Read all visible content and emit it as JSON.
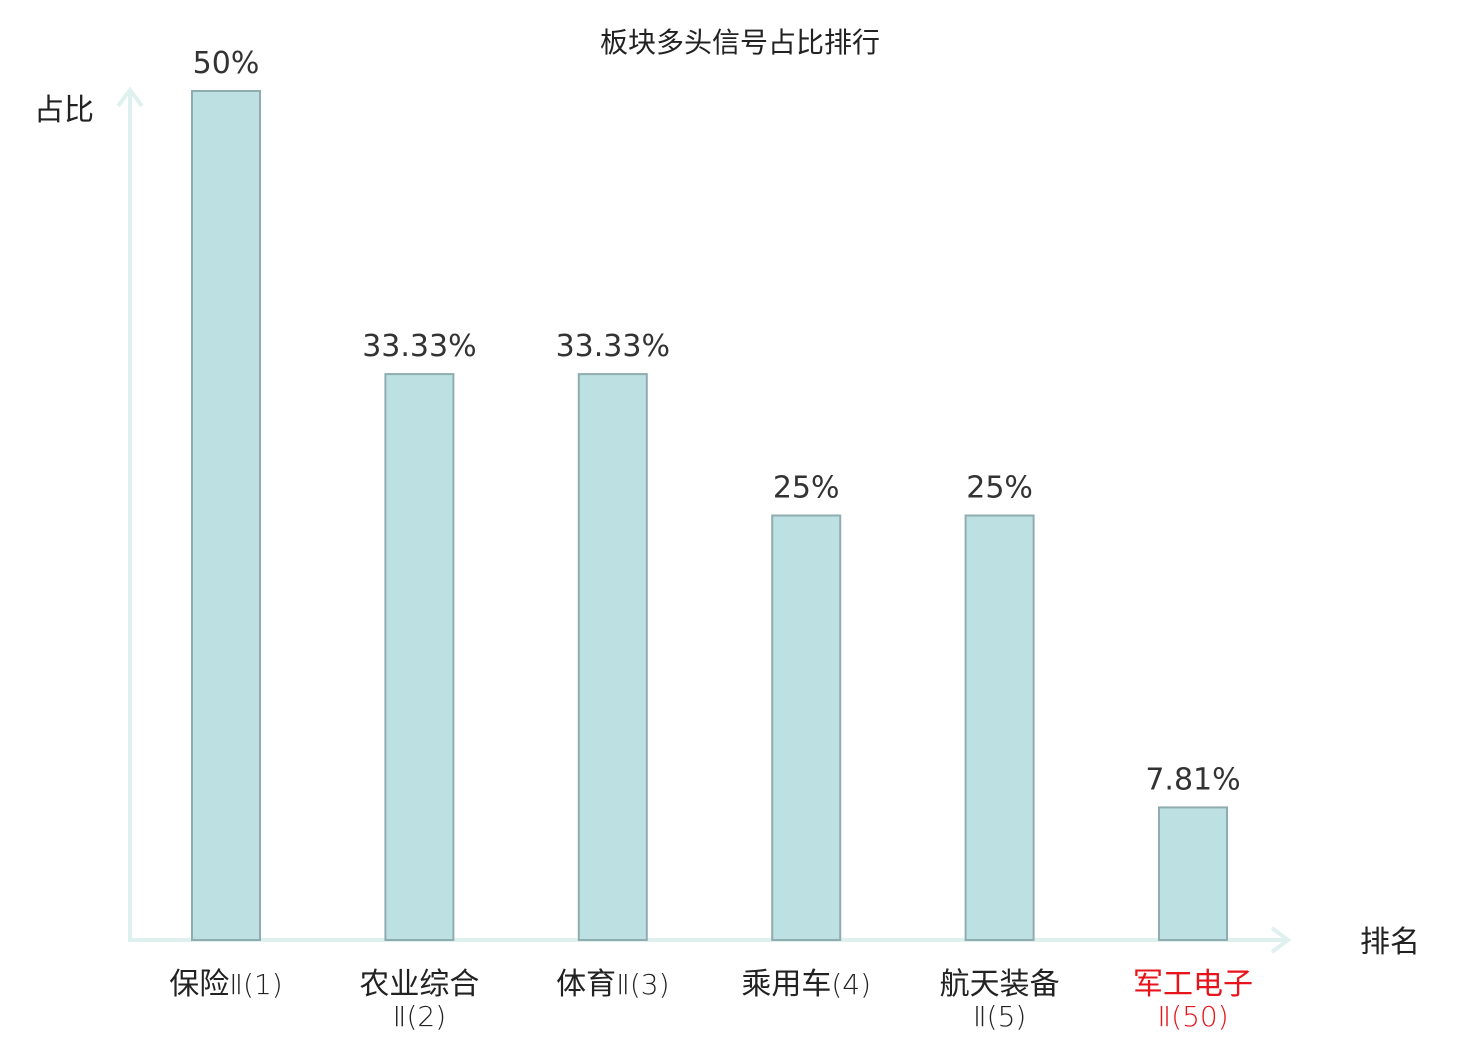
{
  "chart_data": {
    "type": "bar",
    "title": "板块多头信号占比排行",
    "xlabel": "排名",
    "ylabel": "占比",
    "ylim": [
      0,
      50
    ],
    "grid": false,
    "categories": [
      {
        "name": "保险",
        "suffix": "Ⅱ(1)",
        "lines": [
          "保险Ⅱ(1)"
        ],
        "highlight": false
      },
      {
        "name": "农业综合",
        "suffix": "Ⅱ(2)",
        "lines": [
          "农业综合",
          "Ⅱ(2)"
        ],
        "highlight": false
      },
      {
        "name": "体育",
        "suffix": "Ⅱ(3)",
        "lines": [
          "体育Ⅱ(3)"
        ],
        "highlight": false
      },
      {
        "name": "乘用车",
        "suffix": "(4)",
        "lines": [
          "乘用车(4)"
        ],
        "highlight": false
      },
      {
        "name": "航天装备",
        "suffix": "Ⅱ(5)",
        "lines": [
          "航天装备",
          "Ⅱ(5)"
        ],
        "highlight": false
      },
      {
        "name": "军工电子",
        "suffix": "Ⅱ(50)",
        "lines": [
          "军工电子",
          "Ⅱ(50)"
        ],
        "highlight": true
      }
    ],
    "values": [
      50,
      33.33,
      33.33,
      25,
      25,
      7.81
    ],
    "value_labels": [
      "50%",
      "33.33%",
      "33.33%",
      "25%",
      "25%",
      "7.81%"
    ]
  },
  "colors": {
    "bar_fill": "#bde0e3",
    "bar_stroke": "#8fadaf",
    "axis": "#dff1ee",
    "text": "#222222",
    "highlight": "#e8141b"
  }
}
